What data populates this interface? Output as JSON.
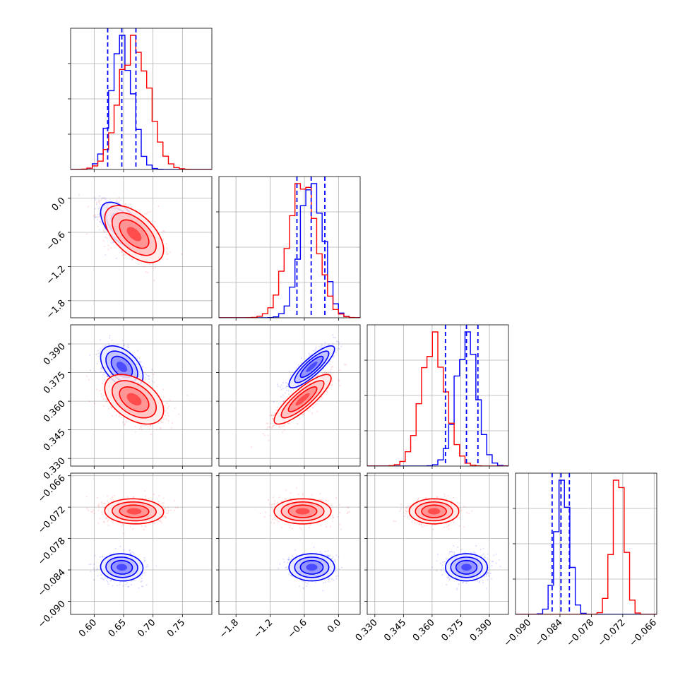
{
  "chart_data": {
    "type": "corner",
    "params": [
      {
        "range": [
          0.56,
          0.8
        ],
        "ticks": [
          "0.60",
          "0.65",
          "0.70",
          "0.75"
        ],
        "tickvals": [
          0.6,
          0.65,
          0.7,
          0.75
        ]
      },
      {
        "range": [
          -2.1,
          0.38
        ],
        "ticks": [
          "−1.8",
          "−1.2",
          "−0.6",
          "0.0"
        ],
        "tickvals": [
          -1.8,
          -1.2,
          -0.6,
          0.0
        ]
      },
      {
        "range": [
          0.326,
          0.4
        ],
        "ticks": [
          "0.330",
          "0.345",
          "0.360",
          "0.375",
          "0.390"
        ],
        "tickvals": [
          0.33,
          0.345,
          0.36,
          0.375,
          0.39
        ]
      },
      {
        "range": [
          -0.0925,
          -0.0655
        ],
        "ticks": [
          "−0.090",
          "−0.084",
          "−0.078",
          "−0.072",
          "−0.066"
        ],
        "tickvals": [
          -0.09,
          -0.084,
          -0.078,
          -0.072,
          -0.066
        ]
      }
    ],
    "series": [
      {
        "color": "#0000ff",
        "mean": [
          0.647,
          -0.47,
          0.378,
          -0.0835
        ],
        "sd": [
          0.018,
          0.2,
          0.0055,
          0.0013
        ],
        "corr": {
          "0-1": -0.55,
          "0-2": -0.45,
          "0-3": -0.05,
          "1-2": 0.85,
          "1-3": 0.0,
          "2-3": 0.0
        },
        "quantiles": [
          [
            0.623,
            0.647,
            0.671
          ],
          [
            -0.73,
            -0.48,
            -0.24
          ],
          [
            0.367,
            0.378,
            0.384
          ],
          [
            -0.0855,
            -0.0838,
            -0.0822
          ]
        ]
      },
      {
        "color": "#ff0000",
        "mean": [
          0.668,
          -0.63,
          0.361,
          -0.0728
        ],
        "sd": [
          0.025,
          0.25,
          0.0065,
          0.0012
        ],
        "corr": {
          "0-1": -0.55,
          "0-2": -0.45,
          "0-3": -0.05,
          "1-2": 0.85,
          "1-3": 0.0,
          "2-3": 0.0
        }
      }
    ],
    "grid": true,
    "hist_type": "step",
    "quantile_lines": "dashed"
  }
}
